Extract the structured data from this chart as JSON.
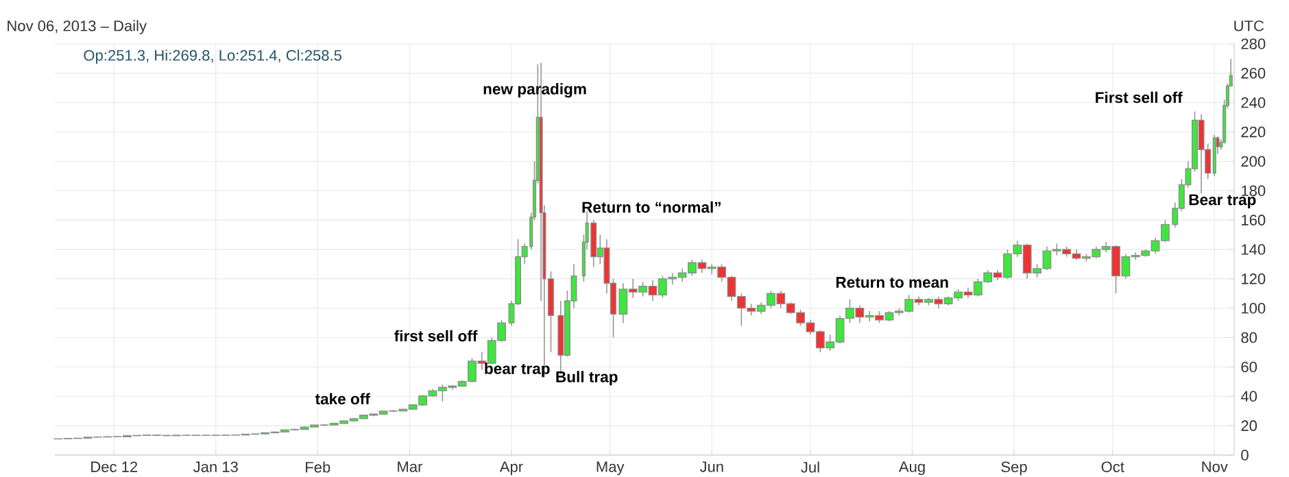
{
  "chart_data": {
    "type": "candlestick",
    "subtitle": "Nov 06, 2013 – Daily",
    "annotations": [
      "UTC",
      "Op:251.3, Hi:269.8, Lo:251.4, Cl:258.5",
      "take off",
      "first sell off",
      "bear trap",
      "new paradigm",
      "Bull trap",
      "Return to “normal”",
      "Return to mean",
      "First sell off",
      "Bear trap"
    ],
    "x": [
      "2012-11-14",
      "2012-11-17",
      "2012-11-20",
      "2012-11-23",
      "2012-11-26",
      "2012-11-29",
      "2012-12-02",
      "2012-12-05",
      "2012-12-08",
      "2012-12-11",
      "2012-12-14",
      "2012-12-17",
      "2012-12-20",
      "2012-12-23",
      "2012-12-26",
      "2012-12-29",
      "2013-01-01",
      "2013-01-04",
      "2013-01-07",
      "2013-01-10",
      "2013-01-13",
      "2013-01-16",
      "2013-01-19",
      "2013-01-22",
      "2013-01-25",
      "2013-01-28",
      "2013-01-31",
      "2013-02-03",
      "2013-02-06",
      "2013-02-09",
      "2013-02-12",
      "2013-02-15",
      "2013-02-18",
      "2013-02-21",
      "2013-02-24",
      "2013-02-27",
      "2013-03-02",
      "2013-03-05",
      "2013-03-08",
      "2013-03-11",
      "2013-03-14",
      "2013-03-17",
      "2013-03-20",
      "2013-03-23",
      "2013-03-26",
      "2013-03-29",
      "2013-04-01",
      "2013-04-03",
      "2013-04-05",
      "2013-04-07",
      "2013-04-08",
      "2013-04-09",
      "2013-04-10",
      "2013-04-11",
      "2013-04-13",
      "2013-04-16",
      "2013-04-18",
      "2013-04-20",
      "2013-04-23",
      "2013-04-24",
      "2013-04-26",
      "2013-04-28",
      "2013-04-30",
      "2013-05-02",
      "2013-05-05",
      "2013-05-08",
      "2013-05-11",
      "2013-05-14",
      "2013-05-17",
      "2013-05-20",
      "2013-05-23",
      "2013-05-26",
      "2013-05-29",
      "2013-06-01",
      "2013-06-04",
      "2013-06-07",
      "2013-06-10",
      "2013-06-13",
      "2013-06-16",
      "2013-06-19",
      "2013-06-22",
      "2013-06-25",
      "2013-06-28",
      "2013-07-01",
      "2013-07-04",
      "2013-07-07",
      "2013-07-10",
      "2013-07-13",
      "2013-07-16",
      "2013-07-19",
      "2013-07-22",
      "2013-07-25",
      "2013-07-28",
      "2013-07-31",
      "2013-08-03",
      "2013-08-06",
      "2013-08-09",
      "2013-08-12",
      "2013-08-15",
      "2013-08-18",
      "2013-08-21",
      "2013-08-24",
      "2013-08-27",
      "2013-08-30",
      "2013-09-02",
      "2013-09-05",
      "2013-09-08",
      "2013-09-11",
      "2013-09-14",
      "2013-09-17",
      "2013-09-20",
      "2013-09-23",
      "2013-09-26",
      "2013-09-29",
      "2013-10-02",
      "2013-10-05",
      "2013-10-08",
      "2013-10-11",
      "2013-10-14",
      "2013-10-17",
      "2013-10-20",
      "2013-10-22",
      "2013-10-24",
      "2013-10-26",
      "2013-10-28",
      "2013-10-30",
      "2013-11-01",
      "2013-11-02",
      "2013-11-03",
      "2013-11-04",
      "2013-11-05",
      "2013-11-06"
    ],
    "ohlc": [
      [
        11.0,
        11.2,
        10.8,
        11.1
      ],
      [
        11.1,
        11.4,
        11.0,
        11.3
      ],
      [
        11.3,
        11.6,
        11.2,
        11.5
      ],
      [
        11.5,
        12.3,
        11.4,
        12.2
      ],
      [
        12.2,
        12.4,
        11.9,
        12.3
      ],
      [
        12.3,
        12.6,
        12.1,
        12.5
      ],
      [
        12.5,
        12.7,
        12.3,
        12.6
      ],
      [
        12.5,
        13.3,
        12.4,
        13.2
      ],
      [
        13.2,
        13.5,
        13.1,
        13.4
      ],
      [
        13.4,
        13.7,
        13.2,
        13.6
      ],
      [
        13.6,
        13.8,
        13.3,
        13.4
      ],
      [
        13.4,
        13.6,
        13.0,
        13.2
      ],
      [
        13.2,
        13.6,
        13.1,
        13.5
      ],
      [
        13.5,
        13.7,
        13.3,
        13.4
      ],
      [
        13.4,
        13.6,
        13.2,
        13.5
      ],
      [
        13.5,
        13.6,
        13.3,
        13.4
      ],
      [
        13.4,
        13.6,
        13.2,
        13.5
      ],
      [
        13.5,
        13.7,
        13.3,
        13.6
      ],
      [
        13.6,
        13.8,
        13.4,
        13.7
      ],
      [
        13.7,
        14.3,
        13.6,
        14.2
      ],
      [
        14.2,
        14.6,
        14.0,
        14.4
      ],
      [
        14.4,
        15.4,
        14.3,
        15.2
      ],
      [
        15.2,
        15.9,
        15.0,
        15.7
      ],
      [
        15.7,
        17.4,
        15.5,
        17.2
      ],
      [
        17.2,
        17.9,
        16.8,
        17.5
      ],
      [
        17.5,
        19.5,
        17.3,
        19.1
      ],
      [
        19.1,
        20.6,
        18.8,
        20.4
      ],
      [
        20.4,
        21.0,
        19.6,
        20.5
      ],
      [
        20.5,
        22.0,
        20.2,
        21.6
      ],
      [
        21.6,
        23.6,
        21.4,
        23.3
      ],
      [
        23.3,
        25.2,
        23.0,
        24.8
      ],
      [
        24.8,
        27.5,
        24.5,
        27.2
      ],
      [
        27.2,
        28.2,
        26.5,
        27.9
      ],
      [
        27.9,
        30.2,
        27.6,
        29.9
      ],
      [
        29.9,
        30.5,
        29.3,
        30.1
      ],
      [
        30.1,
        31.5,
        29.8,
        31.2
      ],
      [
        31.2,
        34.5,
        30.8,
        34.2
      ],
      [
        34.2,
        41,
        33.5,
        40.3
      ],
      [
        40.3,
        45,
        39.5,
        43.8
      ],
      [
        43.8,
        48,
        36.5,
        46.1
      ],
      [
        46.1,
        47.5,
        44.5,
        47
      ],
      [
        47,
        51,
        46.5,
        50.1
      ],
      [
        50.1,
        66,
        49.5,
        64
      ],
      [
        64,
        70,
        58,
        62.5
      ],
      [
        62.5,
        80,
        62,
        78
      ],
      [
        78,
        92,
        77,
        90
      ],
      [
        90,
        105,
        88,
        103
      ],
      [
        103,
        147,
        102,
        135
      ],
      [
        135,
        144,
        130,
        142
      ],
      [
        142,
        165,
        140,
        162
      ],
      [
        162,
        200,
        160,
        187
      ],
      [
        187,
        266,
        185,
        230
      ],
      [
        230,
        267,
        105,
        165
      ],
      [
        165,
        170,
        53,
        120
      ],
      [
        120,
        125,
        70,
        95
      ],
      [
        95,
        105,
        55,
        68
      ],
      [
        68,
        112,
        67,
        105
      ],
      [
        105,
        130,
        100,
        122
      ],
      [
        122,
        150,
        118,
        145
      ],
      [
        145,
        166,
        140,
        158
      ],
      [
        158,
        160,
        128,
        135
      ],
      [
        135,
        150,
        130,
        141
      ],
      [
        141,
        147,
        110,
        117
      ],
      [
        117,
        120,
        80,
        96
      ],
      [
        96,
        117,
        90,
        113
      ],
      [
        113,
        120,
        107,
        111
      ],
      [
        111,
        118,
        108,
        115
      ],
      [
        115,
        119,
        105,
        109
      ],
      [
        109,
        122,
        107,
        120
      ],
      [
        120,
        124,
        116,
        121
      ],
      [
        121,
        127,
        118,
        124
      ],
      [
        124,
        133,
        122,
        131
      ],
      [
        131,
        133,
        124,
        127
      ],
      [
        127,
        130,
        123,
        128
      ],
      [
        128,
        130,
        118,
        121
      ],
      [
        121,
        122,
        105,
        108
      ],
      [
        108,
        110,
        88,
        100
      ],
      [
        100,
        103,
        95,
        98
      ],
      [
        98,
        104,
        96,
        102
      ],
      [
        102,
        112,
        100,
        110
      ],
      [
        110,
        112,
        100,
        103
      ],
      [
        103,
        104,
        96,
        97
      ],
      [
        97,
        99,
        88,
        90
      ],
      [
        90,
        92,
        82,
        84
      ],
      [
        84,
        85,
        70,
        73
      ],
      [
        73,
        82,
        71,
        77
      ],
      [
        77,
        95,
        76,
        93
      ],
      [
        93,
        106,
        90,
        100
      ],
      [
        100,
        102,
        90,
        94
      ],
      [
        94,
        98,
        91,
        95
      ],
      [
        95,
        98,
        90,
        92
      ],
      [
        92,
        98,
        91,
        97
      ],
      [
        97,
        100,
        95,
        98
      ],
      [
        98,
        109,
        97,
        106
      ],
      [
        106,
        108,
        102,
        104
      ],
      [
        104,
        107,
        102,
        106
      ],
      [
        106,
        108,
        100,
        103
      ],
      [
        103,
        108,
        102,
        107
      ],
      [
        107,
        113,
        105,
        111
      ],
      [
        111,
        114,
        107,
        109
      ],
      [
        109,
        120,
        108,
        118
      ],
      [
        118,
        126,
        117,
        124
      ],
      [
        124,
        126,
        119,
        121
      ],
      [
        121,
        140,
        120,
        137
      ],
      [
        137,
        146,
        135,
        143
      ],
      [
        143,
        144,
        120,
        124
      ],
      [
        124,
        130,
        121,
        127
      ],
      [
        127,
        142,
        126,
        139
      ],
      [
        139,
        144,
        136,
        140
      ],
      [
        140,
        142,
        135,
        137
      ],
      [
        137,
        140,
        133,
        134
      ],
      [
        134,
        137,
        132,
        135
      ],
      [
        135,
        142,
        134,
        140
      ],
      [
        140,
        145,
        138,
        142
      ],
      [
        142,
        143,
        110,
        122
      ],
      [
        122,
        137,
        120,
        135
      ],
      [
        135,
        138,
        133,
        136
      ],
      [
        136,
        140,
        135,
        139
      ],
      [
        139,
        148,
        137,
        146
      ],
      [
        146,
        160,
        145,
        157
      ],
      [
        157,
        172,
        155,
        168
      ],
      [
        168,
        188,
        166,
        184
      ],
      [
        184,
        200,
        182,
        195
      ],
      [
        195,
        234,
        193,
        228
      ],
      [
        228,
        232,
        178,
        208
      ],
      [
        208,
        212,
        188,
        192
      ],
      [
        192,
        218,
        190,
        216
      ],
      [
        216,
        217,
        205,
        210
      ],
      [
        210,
        215,
        208,
        213
      ],
      [
        213,
        242,
        212,
        238
      ],
      [
        238,
        253,
        236,
        251.3
      ],
      [
        251.3,
        269.8,
        251.3,
        258.5
      ]
    ],
    "colors": [
      "#3ee63e",
      "#3ee63e",
      "#3ee63e",
      "#3ee63e",
      "#3ee63e",
      "#3ee63e",
      "#3ee63e",
      "#3ee63e",
      "#3ee63e",
      "#3ee63e",
      "#ee3333",
      "#ee3333",
      "#3ee63e",
      "#ee3333",
      "#3ee63e",
      "#ee3333",
      "#3ee63e",
      "#3ee63e",
      "#3ee63e",
      "#3ee63e",
      "#3ee63e",
      "#3ee63e",
      "#3ee63e",
      "#3ee63e",
      "#3ee63e",
      "#3ee63e",
      "#3ee63e",
      "#3ee63e",
      "#3ee63e",
      "#3ee63e",
      "#3ee63e",
      "#3ee63e",
      "#3ee63e",
      "#3ee63e",
      "#3ee63e",
      "#3ee63e",
      "#3ee63e",
      "#3ee63e",
      "#3ee63e",
      "#3ee63e",
      "#3ee63e",
      "#3ee63e",
      "#3ee63e",
      "#ee3333",
      "#3ee63e",
      "#3ee63e",
      "#3ee63e",
      "#3ee63e",
      "#3ee63e",
      "#3ee63e",
      "#3ee63e",
      "#3ee63e",
      "#ee3333",
      "#ee3333",
      "#ee3333",
      "#ee3333",
      "#3ee63e",
      "#3ee63e",
      "#3ee63e",
      "#3ee63e",
      "#ee3333",
      "#3ee63e",
      "#ee3333",
      "#ee3333",
      "#3ee63e",
      "#ee3333",
      "#3ee63e",
      "#ee3333",
      "#3ee63e",
      "#3ee63e",
      "#3ee63e",
      "#3ee63e",
      "#ee3333",
      "#3ee63e",
      "#ee3333",
      "#ee3333",
      "#ee3333",
      "#ee3333",
      "#3ee63e",
      "#3ee63e",
      "#ee3333",
      "#ee3333",
      "#ee3333",
      "#ee3333",
      "#ee3333",
      "#3ee63e",
      "#3ee63e",
      "#3ee63e",
      "#ee3333",
      "#3ee63e",
      "#ee3333",
      "#3ee63e",
      "#3ee63e",
      "#3ee63e",
      "#ee3333",
      "#3ee63e",
      "#ee3333",
      "#3ee63e",
      "#3ee63e",
      "#ee3333",
      "#3ee63e",
      "#3ee63e",
      "#ee3333",
      "#3ee63e",
      "#3ee63e",
      "#ee3333",
      "#3ee63e",
      "#3ee63e",
      "#3ee63e",
      "#ee3333",
      "#ee3333",
      "#3ee63e",
      "#3ee63e",
      "#3ee63e",
      "#ee3333",
      "#3ee63e",
      "#3ee63e",
      "#3ee63e",
      "#3ee63e",
      "#3ee63e",
      "#3ee63e",
      "#3ee63e",
      "#3ee63e",
      "#3ee63e",
      "#ee3333",
      "#ee3333",
      "#3ee63e",
      "#ee3333",
      "#3ee63e",
      "#3ee63e",
      "#3ee63e",
      "#3ee63e"
    ],
    "xlim": [
      "2012-11-13",
      "2013-11-07"
    ],
    "xticks": [
      {
        "value": "2012-12-01",
        "label": "Dec 12"
      },
      {
        "value": "2013-01-01",
        "label": "Jan 13"
      },
      {
        "value": "2013-02-01",
        "label": "Feb"
      },
      {
        "value": "2013-03-01",
        "label": "Mar"
      },
      {
        "value": "2013-04-01",
        "label": "Apr"
      },
      {
        "value": "2013-05-01",
        "label": "May"
      },
      {
        "value": "2013-06-01",
        "label": "Jun"
      },
      {
        "value": "2013-07-01",
        "label": "Jul"
      },
      {
        "value": "2013-08-01",
        "label": "Aug"
      },
      {
        "value": "2013-09-01",
        "label": "Sep"
      },
      {
        "value": "2013-10-01",
        "label": "Oct"
      },
      {
        "value": "2013-11-01",
        "label": "Nov"
      }
    ],
    "ylim": [
      0,
      280
    ],
    "yticks": [
      0,
      20,
      40,
      60,
      80,
      100,
      120,
      140,
      160,
      180,
      200,
      220,
      240,
      260,
      280
    ],
    "grid": true
  }
}
